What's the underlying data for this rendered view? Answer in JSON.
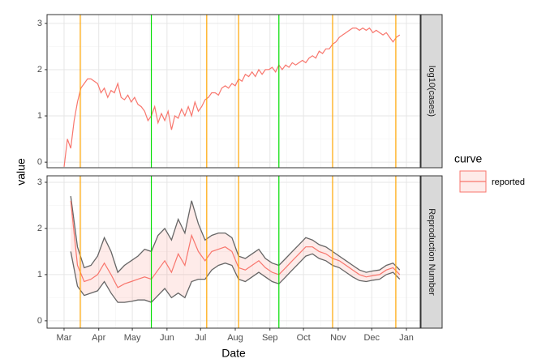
{
  "chart_data": {
    "type": "line",
    "xlabel": "Date",
    "ylabel": "value",
    "legend": {
      "title": "curve",
      "position": "right"
    },
    "grid": true,
    "xlim": [
      -15.2,
      318.3
    ],
    "xticks": [
      {
        "value": 0,
        "label": "Mar"
      },
      {
        "value": 31,
        "label": "Apr"
      },
      {
        "value": 61,
        "label": "May"
      },
      {
        "value": 92,
        "label": "Jun"
      },
      {
        "value": 122,
        "label": "Jul"
      },
      {
        "value": 153,
        "label": "Aug"
      },
      {
        "value": 184,
        "label": "Sep"
      },
      {
        "value": 214,
        "label": "Oct"
      },
      {
        "value": 245,
        "label": "Nov"
      },
      {
        "value": 275,
        "label": "Dec"
      },
      {
        "value": 306,
        "label": "Jan"
      }
    ],
    "vlines": [
      {
        "x": 14.5,
        "color": "#FFA500"
      },
      {
        "x": 78,
        "color": "#00DD00"
      },
      {
        "x": 127.5,
        "color": "#FFA500"
      },
      {
        "x": 156,
        "color": "#FFA500"
      },
      {
        "x": 192,
        "color": "#00DD00"
      },
      {
        "x": 240,
        "color": "#FFA500"
      },
      {
        "x": 296.5,
        "color": "#FFA500"
      }
    ],
    "facets": [
      {
        "label": "log10(cases)",
        "ylim": [
          -0.12,
          3.19
        ],
        "yticks": [
          0,
          1,
          2,
          3
        ],
        "x": [
          0,
          3,
          6,
          9,
          12,
          15,
          18,
          21,
          24,
          27,
          30,
          33,
          36,
          39,
          42,
          45,
          48,
          51,
          54,
          57,
          60,
          63,
          66,
          69,
          72,
          75,
          78,
          81,
          84,
          87,
          90,
          93,
          96,
          99,
          102,
          105,
          108,
          111,
          114,
          117,
          120,
          123,
          126,
          129,
          132,
          135,
          138,
          141,
          144,
          147,
          150,
          153,
          156,
          159,
          162,
          165,
          168,
          171,
          174,
          177,
          180,
          183,
          186,
          189,
          192,
          195,
          198,
          201,
          204,
          207,
          210,
          213,
          216,
          219,
          222,
          225,
          228,
          231,
          234,
          237,
          240,
          243,
          246,
          249,
          252,
          255,
          258,
          261,
          264,
          267,
          270,
          273,
          276,
          279,
          282,
          285,
          288,
          291,
          294,
          297,
          300
        ],
        "series": [
          {
            "name": "reported",
            "color": "#F8766D",
            "values": [
              -0.1,
              0.5,
              0.3,
              0.9,
              1.3,
              1.6,
              1.7,
              1.8,
              1.8,
              1.75,
              1.7,
              1.5,
              1.6,
              1.4,
              1.55,
              1.5,
              1.7,
              1.4,
              1.35,
              1.45,
              1.3,
              1.4,
              1.25,
              1.2,
              1.1,
              0.9,
              1.0,
              1.2,
              0.85,
              1.05,
              0.9,
              1.1,
              0.7,
              1.0,
              0.95,
              1.15,
              1.0,
              1.2,
              1.0,
              1.3,
              1.1,
              1.2,
              1.35,
              1.4,
              1.5,
              1.5,
              1.45,
              1.6,
              1.65,
              1.6,
              1.7,
              1.65,
              1.8,
              1.75,
              1.9,
              1.85,
              1.95,
              1.85,
              2.0,
              1.9,
              2.0,
              2.0,
              2.05,
              1.95,
              2.1,
              2.0,
              2.1,
              2.05,
              2.15,
              2.1,
              2.15,
              2.2,
              2.15,
              2.25,
              2.3,
              2.25,
              2.4,
              2.35,
              2.45,
              2.45,
              2.55,
              2.6,
              2.7,
              2.75,
              2.8,
              2.85,
              2.9,
              2.9,
              2.85,
              2.9,
              2.85,
              2.9,
              2.8,
              2.85,
              2.8,
              2.75,
              2.8,
              2.7,
              2.6,
              2.7,
              2.75
            ]
          }
        ]
      },
      {
        "label": "Reproduction Number",
        "ylim": [
          -0.16,
          3.14
        ],
        "yticks": [
          0,
          1,
          2,
          3
        ],
        "x": [
          6,
          12,
          18,
          24,
          30,
          36,
          42,
          48,
          54,
          60,
          66,
          72,
          78,
          84,
          90,
          96,
          102,
          108,
          114,
          120,
          126,
          132,
          138,
          144,
          150,
          156,
          162,
          168,
          174,
          180,
          186,
          192,
          198,
          204,
          210,
          216,
          222,
          228,
          234,
          240,
          246,
          252,
          258,
          264,
          270,
          276,
          282,
          288,
          294,
          300
        ],
        "series": [
          {
            "color": "#F8766D",
            "band_color": "#666666",
            "values": [
              2.6,
              1.2,
              0.85,
              0.9,
              1.0,
              1.25,
              1.0,
              0.72,
              0.8,
              0.85,
              0.9,
              0.95,
              0.9,
              1.1,
              1.3,
              1.05,
              1.45,
              1.2,
              1.85,
              1.5,
              1.3,
              1.5,
              1.55,
              1.6,
              1.5,
              1.15,
              1.1,
              1.2,
              1.3,
              1.15,
              1.05,
              1.0,
              1.15,
              1.3,
              1.45,
              1.6,
              1.6,
              1.5,
              1.45,
              1.35,
              1.3,
              1.2,
              1.1,
              1.0,
              0.95,
              0.98,
              1.0,
              1.1,
              1.15,
              1.0
            ],
            "lower": [
              1.5,
              0.75,
              0.55,
              0.6,
              0.65,
              0.85,
              0.6,
              0.4,
              0.4,
              0.42,
              0.45,
              0.45,
              0.4,
              0.55,
              0.7,
              0.5,
              0.6,
              0.5,
              0.85,
              0.9,
              0.9,
              1.1,
              1.2,
              1.25,
              1.2,
              0.9,
              0.85,
              0.95,
              1.05,
              0.95,
              0.85,
              0.8,
              0.95,
              1.1,
              1.25,
              1.4,
              1.45,
              1.35,
              1.3,
              1.2,
              1.15,
              1.05,
              0.95,
              0.87,
              0.85,
              0.88,
              0.9,
              1.0,
              1.05,
              0.9
            ],
            "upper": [
              2.7,
              1.6,
              1.15,
              1.2,
              1.4,
              1.8,
              1.5,
              1.05,
              1.2,
              1.3,
              1.4,
              1.55,
              1.5,
              1.85,
              2.0,
              1.75,
              2.2,
              1.9,
              2.6,
              2.1,
              1.75,
              1.85,
              1.9,
              1.9,
              1.8,
              1.4,
              1.35,
              1.45,
              1.55,
              1.35,
              1.25,
              1.2,
              1.35,
              1.5,
              1.65,
              1.8,
              1.75,
              1.65,
              1.6,
              1.5,
              1.4,
              1.3,
              1.2,
              1.1,
              1.05,
              1.08,
              1.1,
              1.2,
              1.25,
              1.1
            ]
          }
        ]
      }
    ]
  }
}
